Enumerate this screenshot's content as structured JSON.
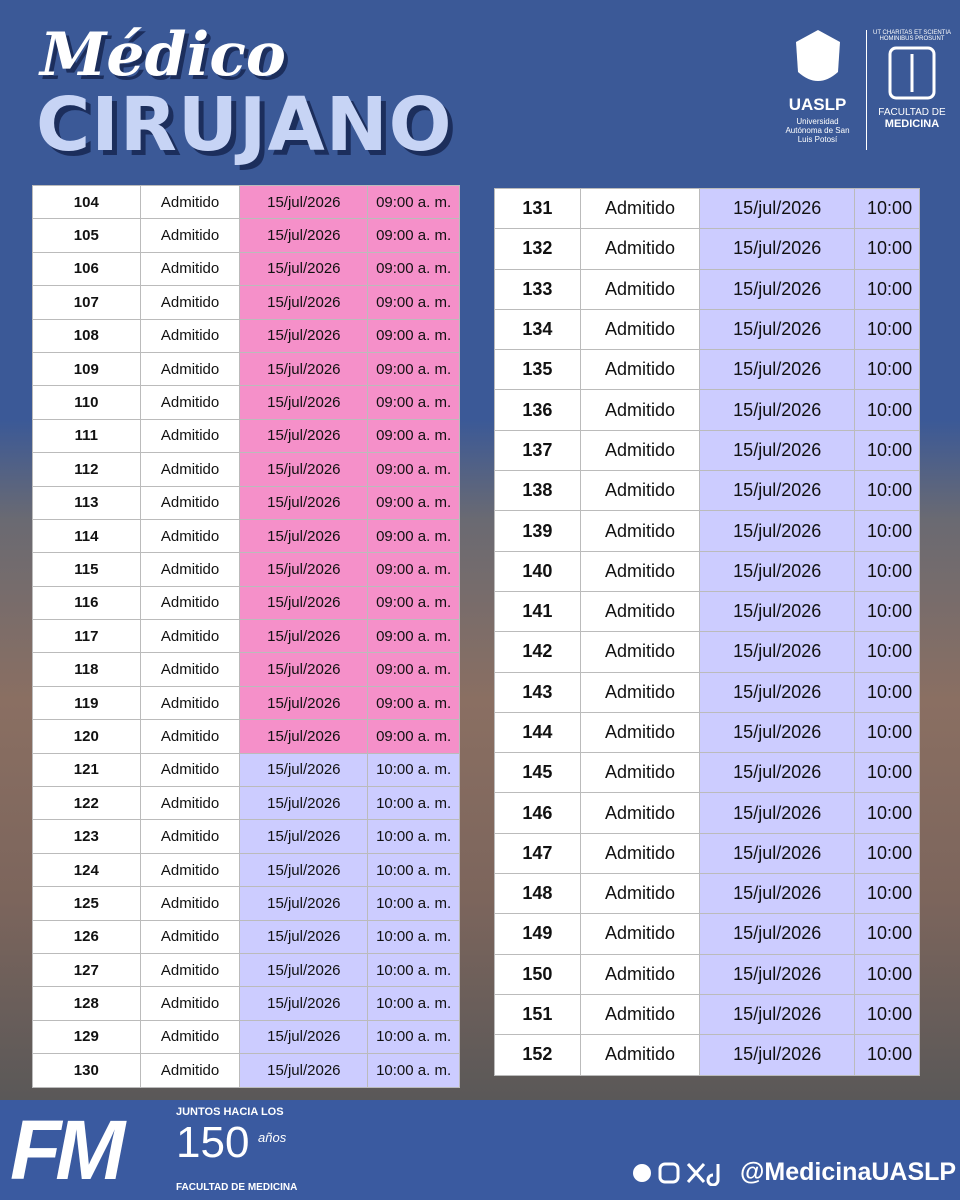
{
  "header": {
    "title_script": "Médico",
    "title_block": "CIRUJANO",
    "university": "UASLP",
    "university_full": "Universidad Autónoma de San Luis Potosí",
    "faculty_motto": "UT CHARITAS ET SCIENTIA HOMINIBUS PROSUNT",
    "faculty_line1": "FACULTAD DE",
    "faculty_line2": "MEDICINA"
  },
  "tables": [
    {
      "rows": [
        [
          "104",
          "Admitido",
          "15/jul/2026",
          "09:00 a. m."
        ],
        [
          "105",
          "Admitido",
          "15/jul/2026",
          "09:00 a. m."
        ],
        [
          "106",
          "Admitido",
          "15/jul/2026",
          "09:00 a. m."
        ],
        [
          "107",
          "Admitido",
          "15/jul/2026",
          "09:00 a. m."
        ],
        [
          "108",
          "Admitido",
          "15/jul/2026",
          "09:00 a. m."
        ],
        [
          "109",
          "Admitido",
          "15/jul/2026",
          "09:00 a. m."
        ],
        [
          "110",
          "Admitido",
          "15/jul/2026",
          "09:00 a. m."
        ],
        [
          "111",
          "Admitido",
          "15/jul/2026",
          "09:00 a. m."
        ],
        [
          "112",
          "Admitido",
          "15/jul/2026",
          "09:00 a. m."
        ],
        [
          "113",
          "Admitido",
          "15/jul/2026",
          "09:00 a. m."
        ],
        [
          "114",
          "Admitido",
          "15/jul/2026",
          "09:00 a. m."
        ],
        [
          "115",
          "Admitido",
          "15/jul/2026",
          "09:00 a. m."
        ],
        [
          "116",
          "Admitido",
          "15/jul/2026",
          "09:00 a. m."
        ],
        [
          "117",
          "Admitido",
          "15/jul/2026",
          "09:00 a. m."
        ],
        [
          "118",
          "Admitido",
          "15/jul/2026",
          "09:00 a. m."
        ],
        [
          "119",
          "Admitido",
          "15/jul/2026",
          "09:00 a. m."
        ],
        [
          "120",
          "Admitido",
          "15/jul/2026",
          "09:00 a. m."
        ],
        [
          "121",
          "Admitido",
          "15/jul/2026",
          "10:00 a. m."
        ],
        [
          "122",
          "Admitido",
          "15/jul/2026",
          "10:00 a. m."
        ],
        [
          "123",
          "Admitido",
          "15/jul/2026",
          "10:00 a. m."
        ],
        [
          "124",
          "Admitido",
          "15/jul/2026",
          "10:00 a. m."
        ],
        [
          "125",
          "Admitido",
          "15/jul/2026",
          "10:00 a. m."
        ],
        [
          "126",
          "Admitido",
          "15/jul/2026",
          "10:00 a. m."
        ],
        [
          "127",
          "Admitido",
          "15/jul/2026",
          "10:00 a. m."
        ],
        [
          "128",
          "Admitido",
          "15/jul/2026",
          "10:00 a. m."
        ],
        [
          "129",
          "Admitido",
          "15/jul/2026",
          "10:00 a. m."
        ],
        [
          "130",
          "Admitido",
          "15/jul/2026",
          "10:00 a. m."
        ]
      ]
    },
    {
      "rows": [
        [
          "131",
          "Admitido",
          "15/jul/2026",
          "10:00"
        ],
        [
          "132",
          "Admitido",
          "15/jul/2026",
          "10:00"
        ],
        [
          "133",
          "Admitido",
          "15/jul/2026",
          "10:00"
        ],
        [
          "134",
          "Admitido",
          "15/jul/2026",
          "10:00"
        ],
        [
          "135",
          "Admitido",
          "15/jul/2026",
          "10:00"
        ],
        [
          "136",
          "Admitido",
          "15/jul/2026",
          "10:00"
        ],
        [
          "137",
          "Admitido",
          "15/jul/2026",
          "10:00"
        ],
        [
          "138",
          "Admitido",
          "15/jul/2026",
          "10:00"
        ],
        [
          "139",
          "Admitido",
          "15/jul/2026",
          "10:00"
        ],
        [
          "140",
          "Admitido",
          "15/jul/2026",
          "10:00"
        ],
        [
          "141",
          "Admitido",
          "15/jul/2026",
          "10:00"
        ],
        [
          "142",
          "Admitido",
          "15/jul/2026",
          "10:00"
        ],
        [
          "143",
          "Admitido",
          "15/jul/2026",
          "10:00"
        ],
        [
          "144",
          "Admitido",
          "15/jul/2026",
          "10:00"
        ],
        [
          "145",
          "Admitido",
          "15/jul/2026",
          "10:00"
        ],
        [
          "146",
          "Admitido",
          "15/jul/2026",
          "10:00"
        ],
        [
          "147",
          "Admitido",
          "15/jul/2026",
          "10:00"
        ],
        [
          "148",
          "Admitido",
          "15/jul/2026",
          "10:00"
        ],
        [
          "149",
          "Admitido",
          "15/jul/2026",
          "10:00"
        ],
        [
          "150",
          "Admitido",
          "15/jul/2026",
          "10:00"
        ],
        [
          "151",
          "Admitido",
          "15/jul/2026",
          "10:00"
        ],
        [
          "152",
          "Admitido",
          "15/jul/2026",
          "10:00"
        ]
      ]
    }
  ],
  "footer": {
    "logo": "FM",
    "slogan": "JUNTOS HACIA LOS",
    "number": "150",
    "years": "años",
    "faculty": "FACULTAD DE MEDICINA",
    "handle": "@MedicinaUASLP"
  }
}
